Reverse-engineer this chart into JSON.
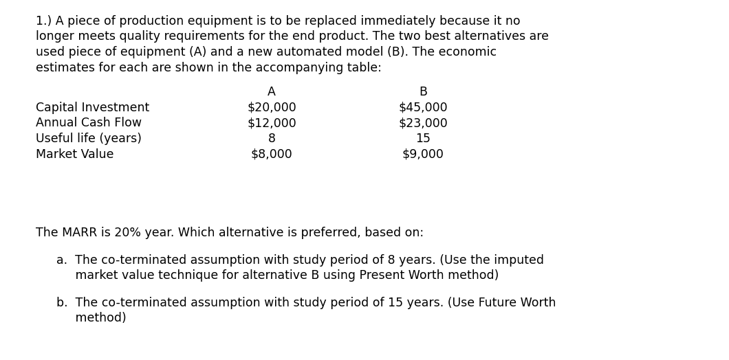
{
  "bg_color": "#ffffff",
  "text_color": "#000000",
  "para1_lines": [
    "1.) A piece of production equipment is to be replaced immediately because it no",
    "longer meets quality requirements for the end product. The two best alternatives are",
    "used piece of equipment (A) and a new automated model (B). The economic",
    "estimates for each are shown in the accompanying table:"
  ],
  "col_headers": [
    "A",
    "B"
  ],
  "row_labels": [
    "Capital Investment",
    "Annual Cash Flow",
    "Useful life (years)",
    "Market Value"
  ],
  "col_A": [
    "$20,000",
    "$12,000",
    "8",
    "$8,000"
  ],
  "col_B": [
    "$45,000",
    "$23,000",
    "15",
    "$9,000"
  ],
  "marr_text": "The MARR is 20% year. Which alternative is preferred, based on:",
  "item_a_line1": "a.  The co-terminated assumption with study period of 8 years. (Use the imputed",
  "item_a_line2": "     market value technique for alternative B using Present Worth method)",
  "item_b_line1": "b.  The co-terminated assumption with study period of 15 years. (Use Future Worth",
  "item_b_line2": "     method)",
  "font_size": 12.5
}
